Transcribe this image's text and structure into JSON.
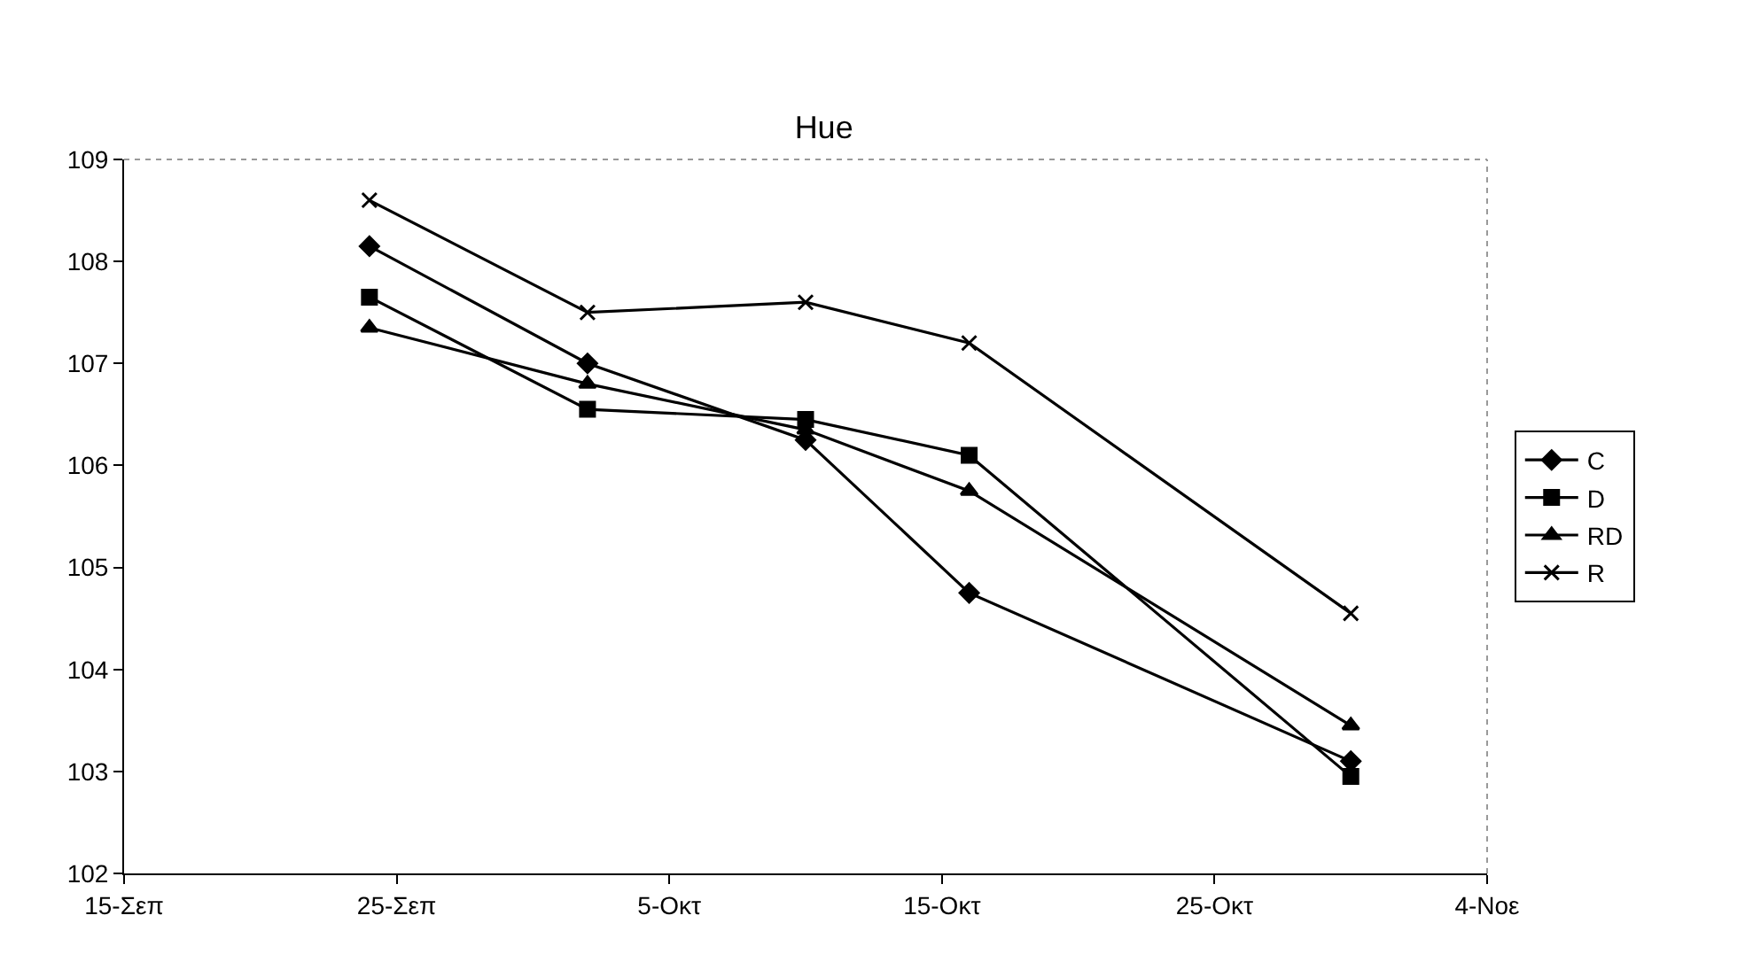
{
  "chart_data": {
    "type": "line",
    "title": "Hue",
    "x": [
      "--09-24",
      "--10-02",
      "--10-10",
      "--10-16",
      "--10-30"
    ],
    "series": [
      {
        "name": "C",
        "color": "#000000",
        "marker": "diamond",
        "values": [
          108.15,
          107.0,
          106.25,
          104.75,
          103.1
        ]
      },
      {
        "name": "D",
        "color": "#000000",
        "marker": "square",
        "values": [
          107.65,
          106.55,
          106.45,
          106.1,
          102.95
        ]
      },
      {
        "name": "RD",
        "color": "#000000",
        "marker": "triangle",
        "values": [
          107.35,
          106.8,
          106.35,
          105.75,
          103.45
        ]
      },
      {
        "name": "R",
        "color": "#000000",
        "marker": "cross",
        "values": [
          108.6,
          107.5,
          107.6,
          107.2,
          104.55
        ]
      }
    ],
    "xlim": [
      "--09-15",
      "--11-04"
    ],
    "xticks": [
      {
        "value": "--09-15",
        "label": "15-Σεπ"
      },
      {
        "value": "--09-25",
        "label": "25-Σεπ"
      },
      {
        "value": "--10-05",
        "label": "5-Οκτ"
      },
      {
        "value": "--10-15",
        "label": "15-Οκτ"
      },
      {
        "value": "--10-25",
        "label": "25-Οκτ"
      },
      {
        "value": "--11-04",
        "label": "4-Νοε"
      }
    ],
    "ylim": [
      102,
      109
    ],
    "yticks": [
      102,
      103,
      104,
      105,
      106,
      107,
      108,
      109
    ],
    "grid": false,
    "legend": "right",
    "line_style": "solid"
  }
}
